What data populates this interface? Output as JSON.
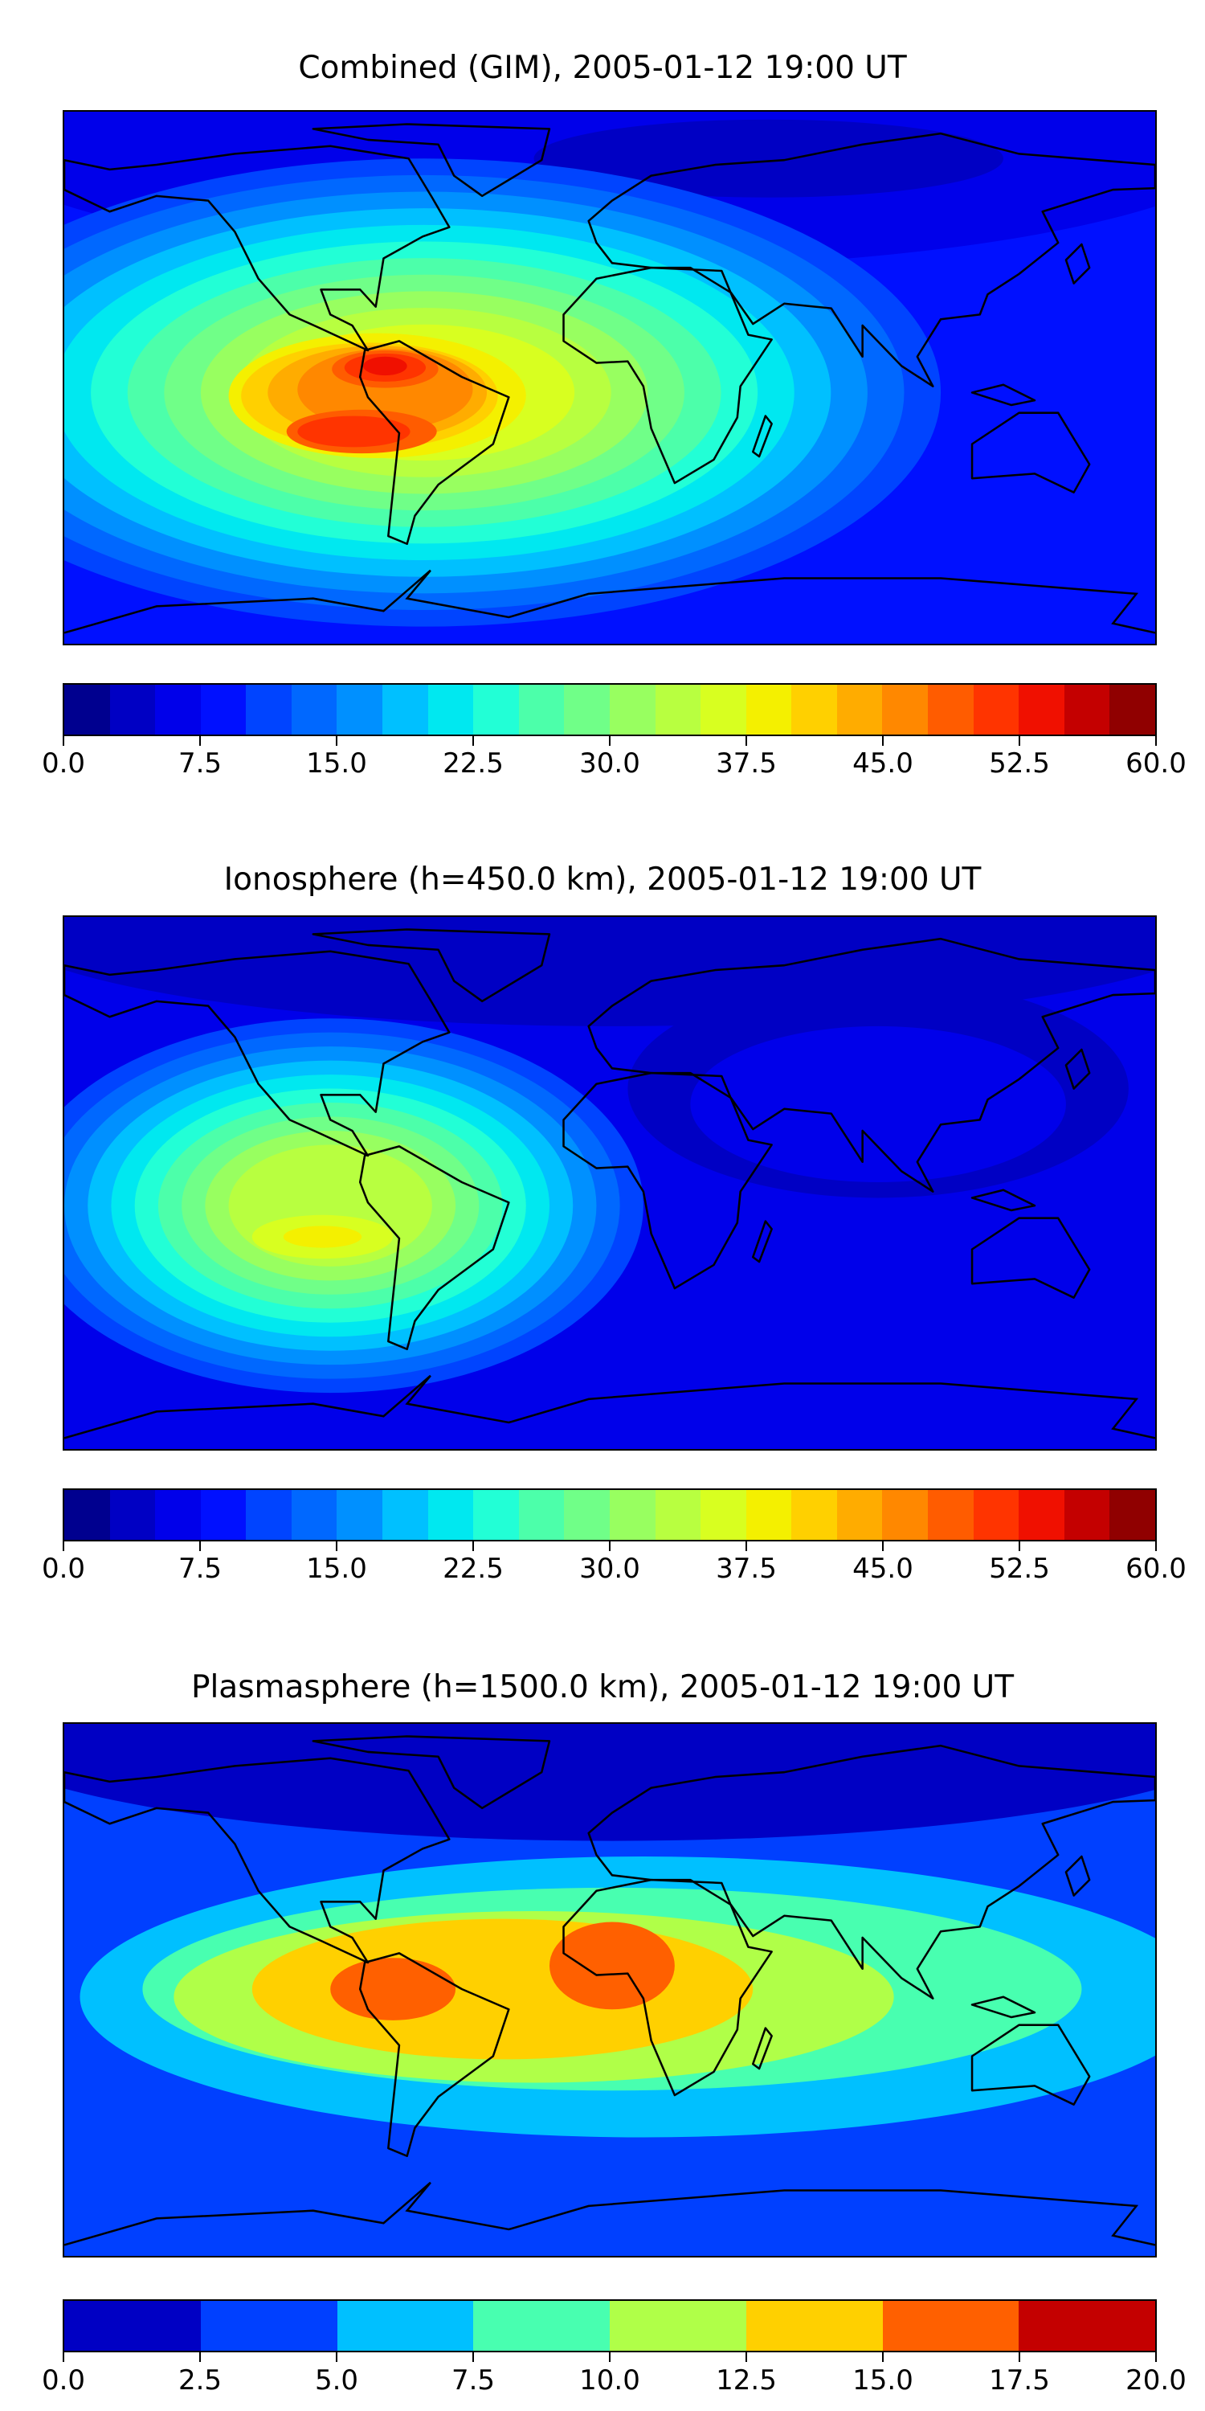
{
  "chart_data": [
    {
      "type": "heatmap",
      "title": "Combined (GIM), 2005-01-12 19:00 UT",
      "colorbar": {
        "range": [
          0,
          60
        ],
        "step": 2.5,
        "ticks": [
          "0.0",
          "7.5",
          "15.0",
          "22.5",
          "30.0",
          "37.5",
          "45.0",
          "52.5",
          "60.0"
        ],
        "colors": [
          "#00008f",
          "#0000c4",
          "#0000ea",
          "#0010ff",
          "#0044ff",
          "#0068ff",
          "#0090ff",
          "#00c0ff",
          "#00e8f0",
          "#22ffd6",
          "#4cffaa",
          "#70ff88",
          "#98ff60",
          "#b8ff40",
          "#d8ff20",
          "#f4f000",
          "#ffd000",
          "#ffac00",
          "#ff8800",
          "#ff5c00",
          "#ff3400",
          "#f01000",
          "#c40000",
          "#900000"
        ]
      },
      "peak_value_approx": 52.5,
      "peak_location": "north-west South America / central South America"
    },
    {
      "type": "heatmap",
      "title": "Ionosphere  (h=450.0 km), 2005-01-12 19:00 UT",
      "colorbar": {
        "range": [
          0,
          60
        ],
        "step": 2.5,
        "ticks": [
          "0.0",
          "7.5",
          "15.0",
          "22.5",
          "30.0",
          "37.5",
          "45.0",
          "52.5",
          "60.0"
        ],
        "colors": [
          "#00008f",
          "#0000c4",
          "#0000ea",
          "#0010ff",
          "#0044ff",
          "#0068ff",
          "#0090ff",
          "#00c0ff",
          "#00e8f0",
          "#22ffd6",
          "#4cffaa",
          "#70ff88",
          "#98ff60",
          "#b8ff40",
          "#d8ff20",
          "#f4f000",
          "#ffd000",
          "#ffac00",
          "#ff8800",
          "#ff5c00",
          "#ff3400",
          "#f01000",
          "#c40000",
          "#900000"
        ]
      },
      "peak_value_approx": 37.5,
      "peak_location": "South America / eastern Pacific"
    },
    {
      "type": "heatmap",
      "title": "Plasmasphere (h=1500.0 km), 2005-01-12 19:00 UT",
      "colorbar": {
        "range": [
          0,
          20
        ],
        "step": 2.5,
        "ticks": [
          "0.0",
          "2.5",
          "5.0",
          "7.5",
          "10.0",
          "12.5",
          "15.0",
          "17.5",
          "20.0"
        ],
        "colors": [
          "#0000c4",
          "#0040ff",
          "#00c0ff",
          "#48ffb0",
          "#b0ff48",
          "#ffd000",
          "#ff6000",
          "#c40000"
        ]
      },
      "peak_value_approx": 15.0,
      "peak_location": "northern South America and western Africa"
    }
  ]
}
